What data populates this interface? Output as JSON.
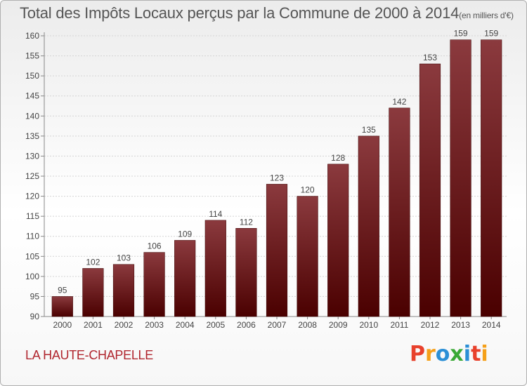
{
  "header": {
    "title": "Total des Impôts Locaux perçus par la Commune de 2000 à 2014",
    "unit": "(en milliers d'€)"
  },
  "footer": {
    "commune": "LA HAUTE-CHAPELLE",
    "brand_letters": [
      "P",
      "r",
      "o",
      "x",
      "i",
      "t",
      "i"
    ],
    "brand_colors": [
      "#e8412c",
      "#f5a01a",
      "#2b8fd6",
      "#3aa935",
      "#2b8fd6",
      "#e8412c",
      "#f5a01a"
    ]
  },
  "chart_data": {
    "type": "bar",
    "title": "Total des Impôts Locaux perçus par la Commune de 2000 à 2014",
    "xlabel": "",
    "ylabel": "",
    "categories": [
      "2000",
      "2001",
      "2002",
      "2003",
      "2004",
      "2005",
      "2006",
      "2007",
      "2008",
      "2009",
      "2010",
      "2011",
      "2012",
      "2013",
      "2014"
    ],
    "values": [
      95,
      102,
      103,
      106,
      109,
      114,
      112,
      123,
      120,
      128,
      135,
      142,
      153,
      159,
      159
    ],
    "ylim": [
      90,
      160
    ],
    "yticks": [
      90,
      95,
      100,
      105,
      110,
      115,
      120,
      125,
      130,
      135,
      140,
      145,
      150,
      155,
      160
    ],
    "grid": true,
    "bar_color_top": "#8b3a3e",
    "bar_color_bottom": "#4a0000"
  }
}
